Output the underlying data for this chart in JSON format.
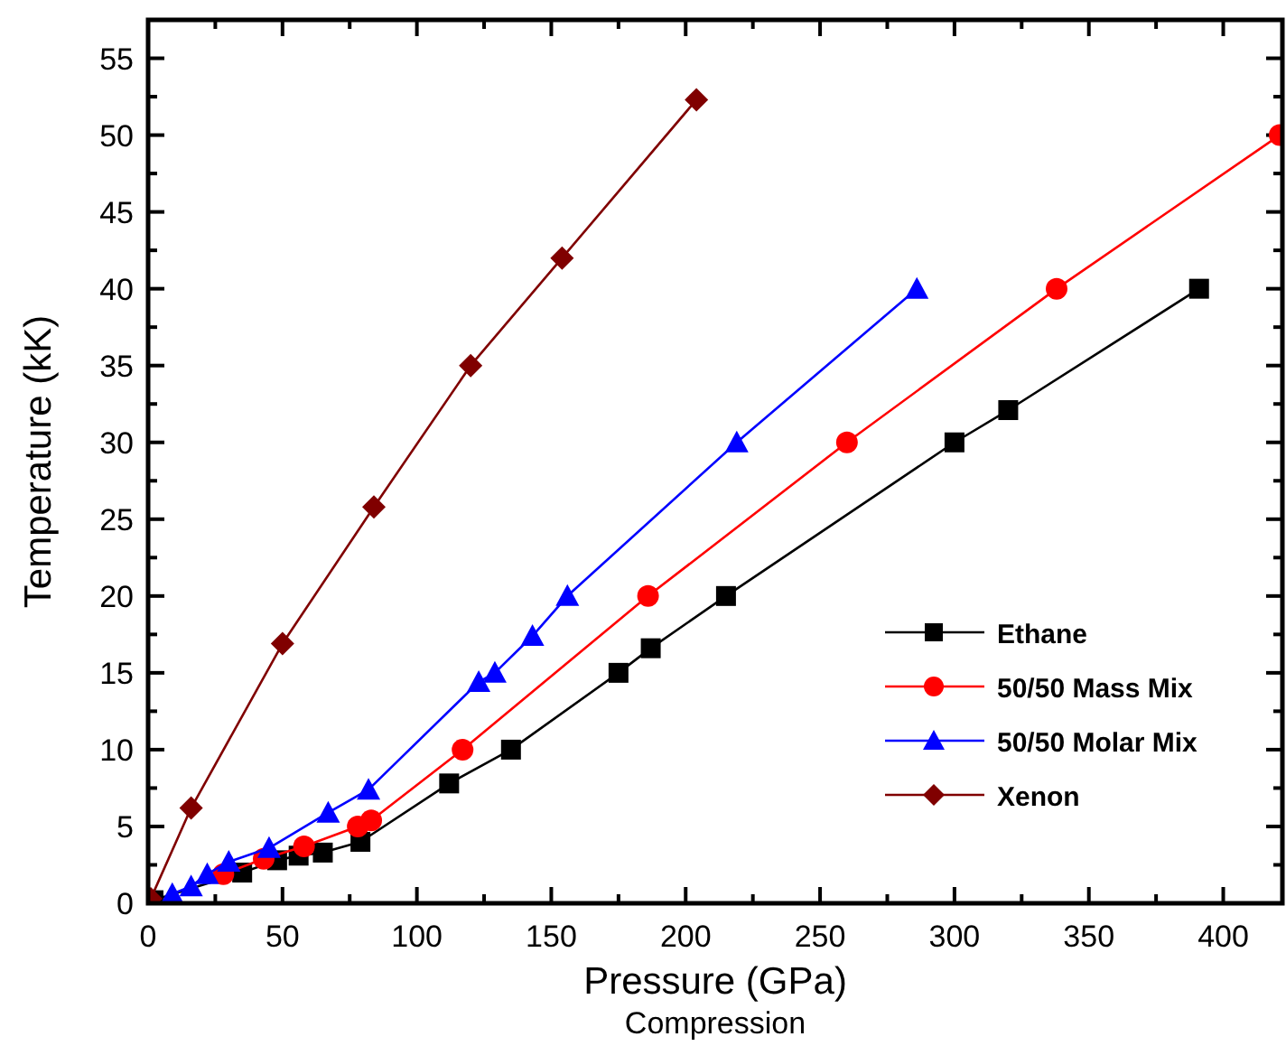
{
  "chart_data": {
    "type": "line",
    "xlabel": "Pressure (GPa)",
    "ylabel": "Temperature (kK)",
    "annotations": [
      "Compression"
    ],
    "xlim": [
      0,
      422
    ],
    "ylim": [
      0,
      57.5
    ],
    "xticks": [
      0,
      50,
      100,
      150,
      200,
      250,
      300,
      350,
      400
    ],
    "yticks": [
      0,
      5,
      10,
      15,
      20,
      25,
      30,
      35,
      40,
      45,
      50,
      55
    ],
    "legend": "bottom right",
    "grid": false,
    "series": [
      {
        "name": "Ethane",
        "color": "#000000",
        "marker": "square",
        "x": [
          2,
          35,
          48,
          56,
          65,
          79,
          112,
          135,
          175,
          187,
          215,
          300,
          320,
          391
        ],
        "values": [
          0.2,
          2.0,
          2.8,
          3.1,
          3.3,
          4.0,
          7.8,
          10,
          15,
          16.6,
          20,
          30,
          32.1,
          40
        ]
      },
      {
        "name": "50/50 Mass Mix",
        "color": "#ff0000",
        "marker": "circle",
        "x": [
          28,
          43,
          58,
          78,
          83,
          117,
          186,
          260,
          338,
          421
        ],
        "values": [
          1.9,
          2.9,
          3.7,
          5.0,
          5.4,
          10,
          20,
          30,
          40,
          50
        ]
      },
      {
        "name": "50/50 Molar Mix",
        "color": "#0000ff",
        "marker": "triangle",
        "x": [
          9,
          16,
          22,
          30,
          45,
          67,
          82,
          123,
          129,
          143,
          156,
          219,
          286
        ],
        "values": [
          0.6,
          1.1,
          1.9,
          2.7,
          3.6,
          5.9,
          7.4,
          14.4,
          15,
          17.4,
          20,
          30,
          40
        ]
      },
      {
        "name": "Xenon",
        "color": "#800000",
        "marker": "diamond",
        "x": [
          1,
          16,
          50,
          84,
          120,
          154,
          204
        ],
        "values": [
          0.3,
          6.2,
          16.9,
          25.8,
          35,
          42,
          52.3
        ]
      }
    ]
  }
}
